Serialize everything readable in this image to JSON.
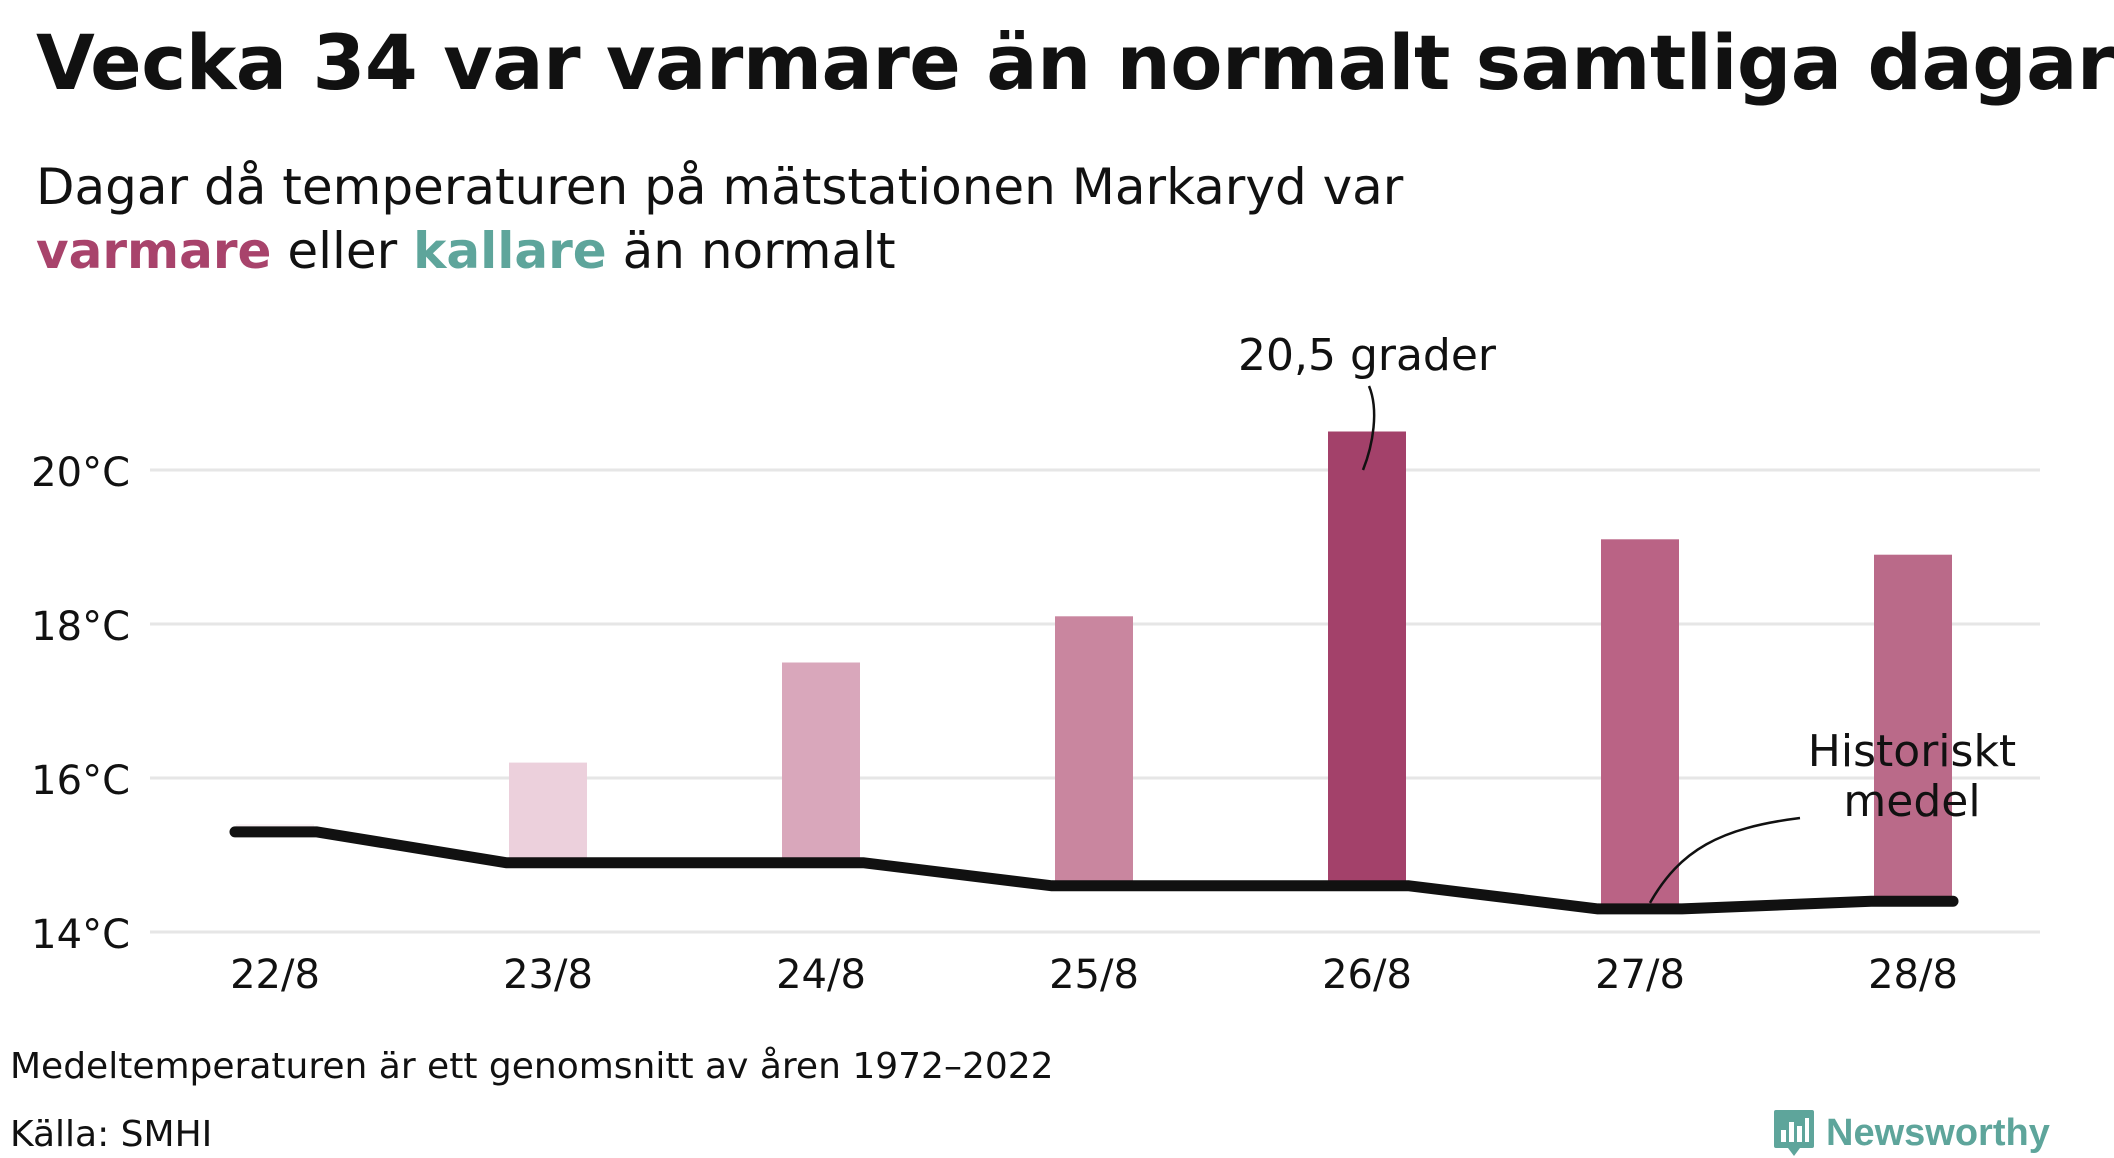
{
  "title": "Vecka 34 var varmare än normalt samtliga dagar",
  "subtitle": {
    "line1": "Dagar då temperaturen på mätstationen Markaryd var",
    "warm_word": "varmare",
    "middle": "eller",
    "cold_word": "kallare",
    "end": "än normalt"
  },
  "colors": {
    "warm": "#a8436b",
    "cold": "#5ea59b",
    "line": "#111111",
    "grid": "#e6e6e6"
  },
  "chart_data": {
    "type": "bar",
    "categories": [
      "22/8",
      "23/8",
      "24/8",
      "25/8",
      "26/8",
      "27/8",
      "28/8"
    ],
    "series": [
      {
        "values": [
          15.4,
          16.2,
          17.5,
          18.1,
          20.5,
          19.1,
          18.9
        ]
      },
      {
        "values": [
          15.3,
          14.9,
          14.9,
          14.6,
          14.6,
          14.3,
          14.4
        ]
      }
    ],
    "bar_colors": [
      "#f8f0f3",
      "#ecd0dc",
      "#d9a7bb",
      "#c9869f",
      "#a3416a",
      "#ba6385",
      "#ba6a89"
    ],
    "ylim": [
      14,
      21
    ],
    "yticks": [
      14,
      16,
      18,
      20
    ],
    "ytick_labels": [
      "14°C",
      "16°C",
      "18°C",
      "20°C"
    ],
    "grid": true,
    "annotations": [
      {
        "text": "20,5 grader",
        "target": "26/8"
      },
      {
        "text_lines": [
          "Historiskt",
          "medel"
        ],
        "target": "27/8"
      }
    ]
  },
  "footnote": "Medeltemperaturen är ett genomsnitt av åren 1972–2022",
  "source": "Källa: SMHI",
  "brand": {
    "name": "Newsworthy",
    "icon": "newsworthy-logo-icon"
  }
}
